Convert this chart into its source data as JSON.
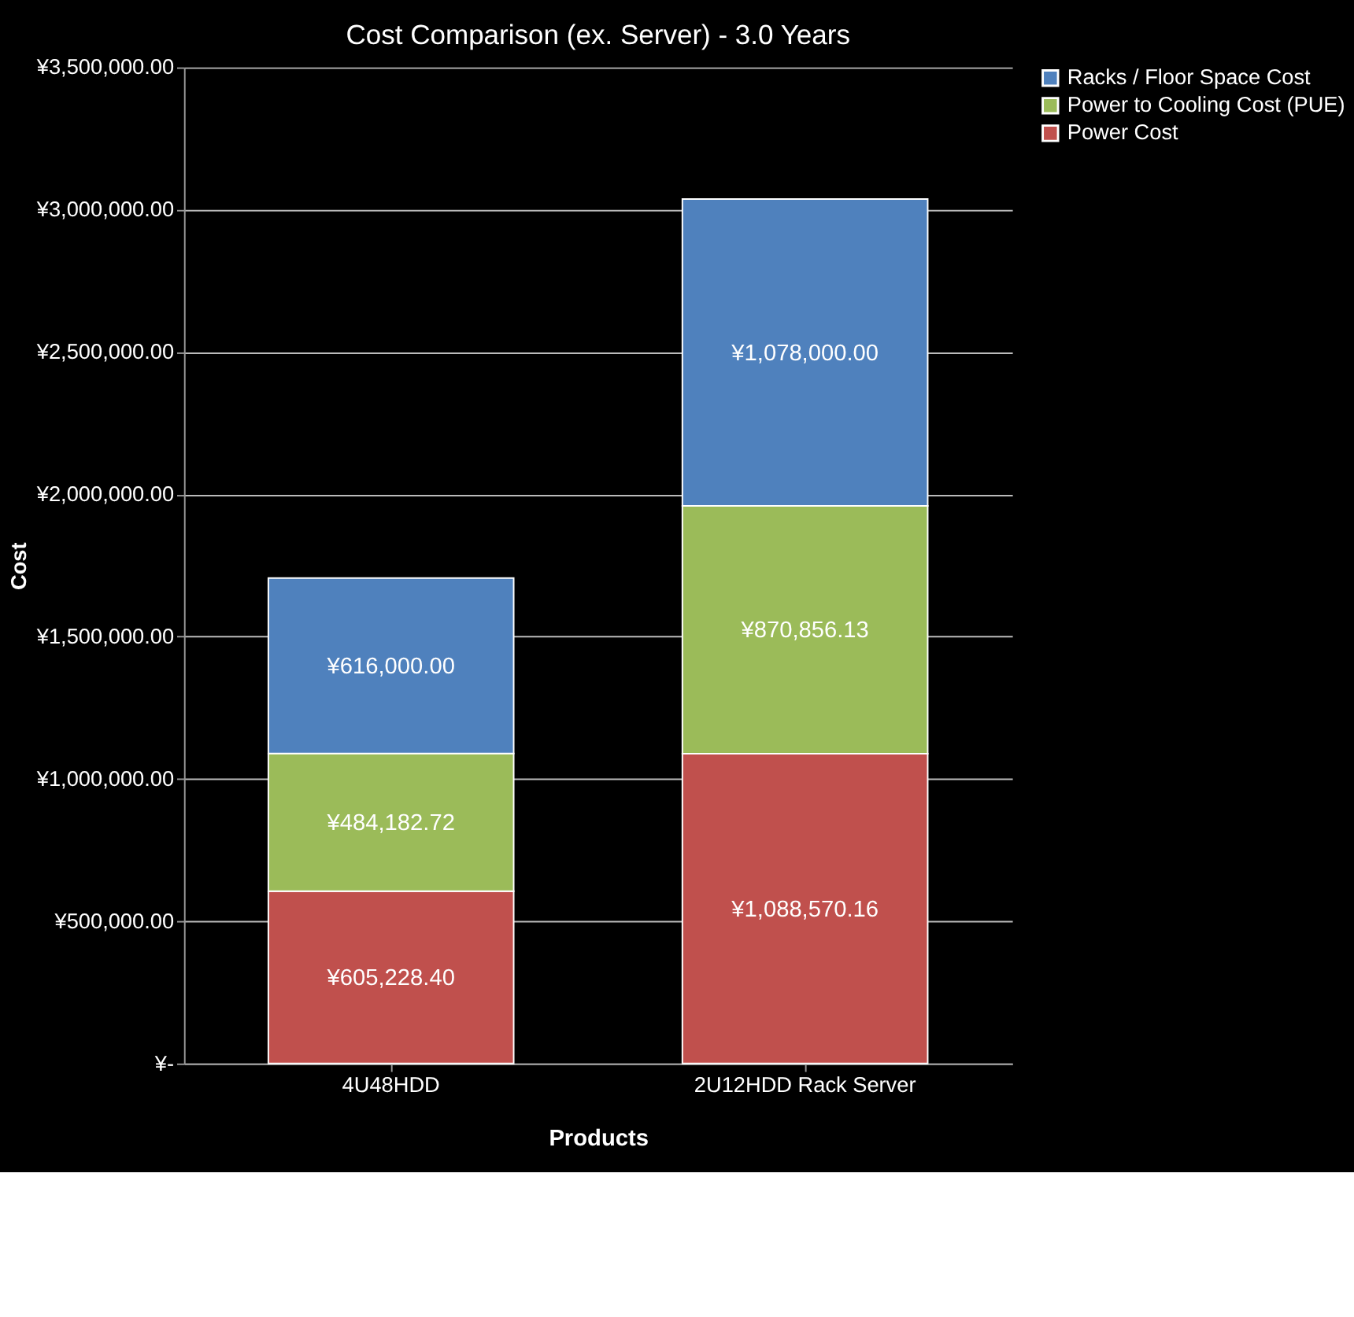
{
  "chart_data": {
    "type": "bar",
    "stacked": true,
    "title": "Cost Comparison (ex. Server) - 3.0 Years",
    "xlabel": "Products",
    "ylabel": "Cost",
    "categories": [
      "4U48HDD",
      "2U12HDD Rack Server"
    ],
    "series": [
      {
        "name": "Power Cost",
        "color": "#c0504d",
        "values": [
          605228.4,
          1088570.16
        ],
        "value_labels": [
          "¥605,228.40",
          "¥1,088,570.16"
        ]
      },
      {
        "name": "Power to Cooling Cost (PUE)",
        "color": "#9bbb59",
        "values": [
          484182.72,
          870856.13
        ],
        "value_labels": [
          "¥484,182.72",
          "¥870,856.13"
        ]
      },
      {
        "name": "Racks / Floor Space Cost",
        "color": "#4f81bd",
        "values": [
          616000.0,
          1078000.0
        ],
        "value_labels": [
          "¥616,000.00",
          "¥1,078,000.00"
        ]
      }
    ],
    "ylim": [
      0,
      3500000
    ],
    "yticks": [
      {
        "value": 0,
        "label": "¥-"
      },
      {
        "value": 500000,
        "label": "¥500,000.00"
      },
      {
        "value": 1000000,
        "label": "¥1,000,000.00"
      },
      {
        "value": 1500000,
        "label": "¥1,500,000.00"
      },
      {
        "value": 2000000,
        "label": "¥2,000,000.00"
      },
      {
        "value": 2500000,
        "label": "¥2,500,000.00"
      },
      {
        "value": 3000000,
        "label": "¥3,000,000.00"
      },
      {
        "value": 3500000,
        "label": "¥3,500,000.00"
      }
    ],
    "grid": "y",
    "legend": "right"
  }
}
